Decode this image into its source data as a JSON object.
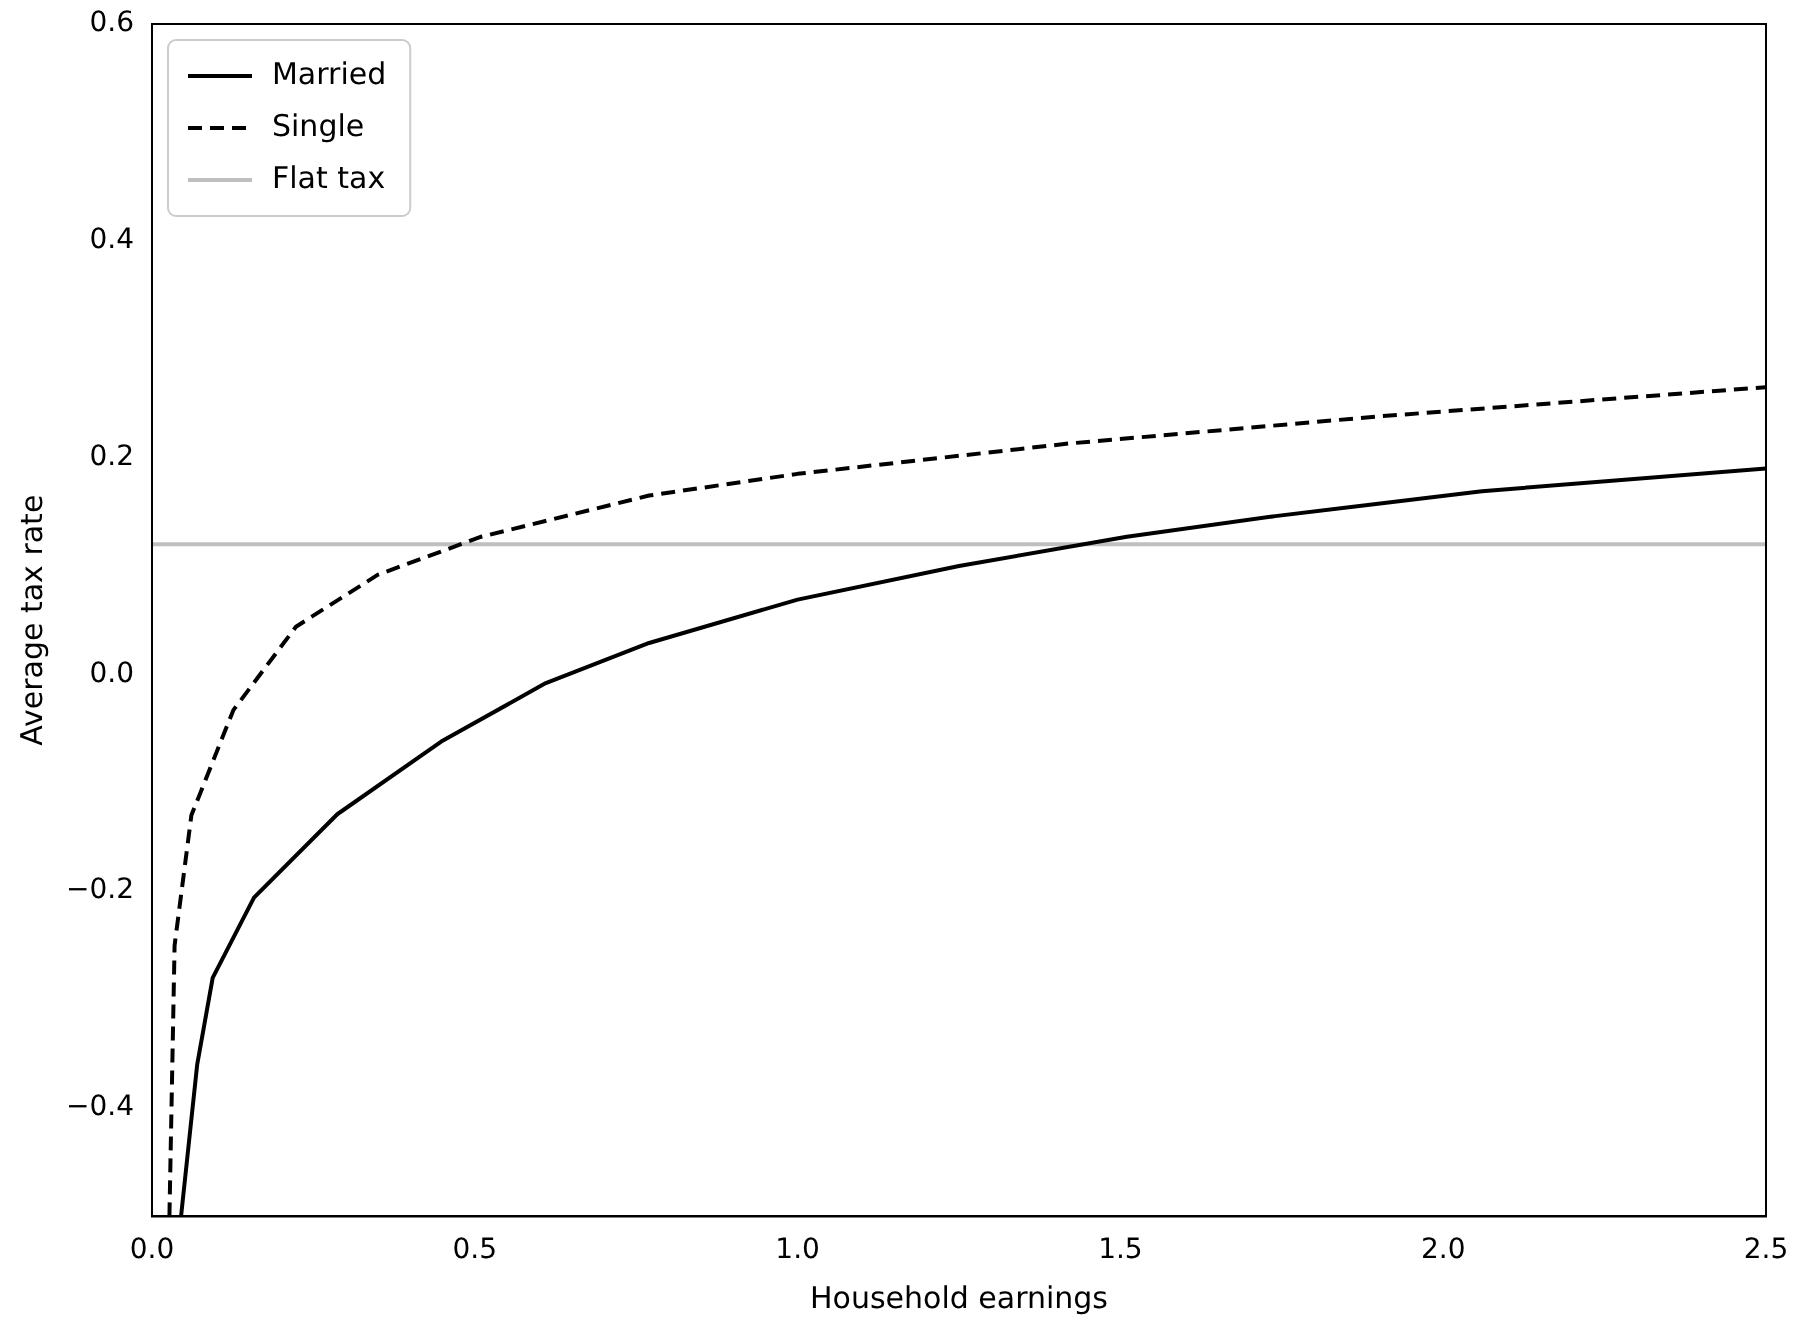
{
  "chart_data": {
    "type": "line",
    "xlabel": "Household earnings",
    "ylabel": "Average tax rate",
    "xlim": [
      0,
      2.5
    ],
    "ylim": [
      -0.5,
      0.6
    ],
    "xticks": [
      {
        "value": 0,
        "label": "0.0"
      },
      {
        "value": 0.5,
        "label": "0.5"
      },
      {
        "value": 1,
        "label": "1.0"
      },
      {
        "value": 1.5,
        "label": "1.5"
      },
      {
        "value": 2,
        "label": "2.0"
      },
      {
        "value": 2.5,
        "label": "2.5"
      }
    ],
    "yticks": [
      {
        "value": -0.4,
        "label": "−0.4"
      },
      {
        "value": -0.2,
        "label": "−0.2"
      },
      {
        "value": 0,
        "label": "0.0"
      },
      {
        "value": 0.2,
        "label": "0.2"
      },
      {
        "value": 0.4,
        "label": "0.4"
      },
      {
        "value": 0.6,
        "label": "0.6"
      }
    ],
    "grid": false,
    "legend": "top left",
    "marker": "none",
    "series": [
      {
        "name": "Married",
        "color": "#000000",
        "line_style": "solid",
        "x": [
          0.045,
          0.07,
          0.094,
          0.158,
          0.287,
          0.448,
          0.61,
          0.77,
          1.0,
          1.25,
          1.51,
          1.74,
          2.06,
          2.5
        ],
        "values": [
          -0.5,
          -0.36,
          -0.28,
          -0.206,
          -0.129,
          -0.062,
          -0.008,
          0.029,
          0.069,
          0.1,
          0.127,
          0.146,
          0.169,
          0.19
        ]
      },
      {
        "name": "Single",
        "color": "#000000",
        "line_style": "dashed",
        "x": [
          0.027,
          0.035,
          0.061,
          0.126,
          0.223,
          0.35,
          0.51,
          0.77,
          1.0,
          1.42,
          1.9,
          2.5
        ],
        "values": [
          -0.5,
          -0.25,
          -0.13,
          -0.033,
          0.044,
          0.092,
          0.127,
          0.165,
          0.185,
          0.213,
          0.238,
          0.265
        ]
      },
      {
        "name": "Flat tax",
        "color": "#bfbfbf",
        "line_style": "solid",
        "x": [
          0,
          2.5
        ],
        "values": [
          0.12,
          0.12
        ]
      }
    ]
  }
}
